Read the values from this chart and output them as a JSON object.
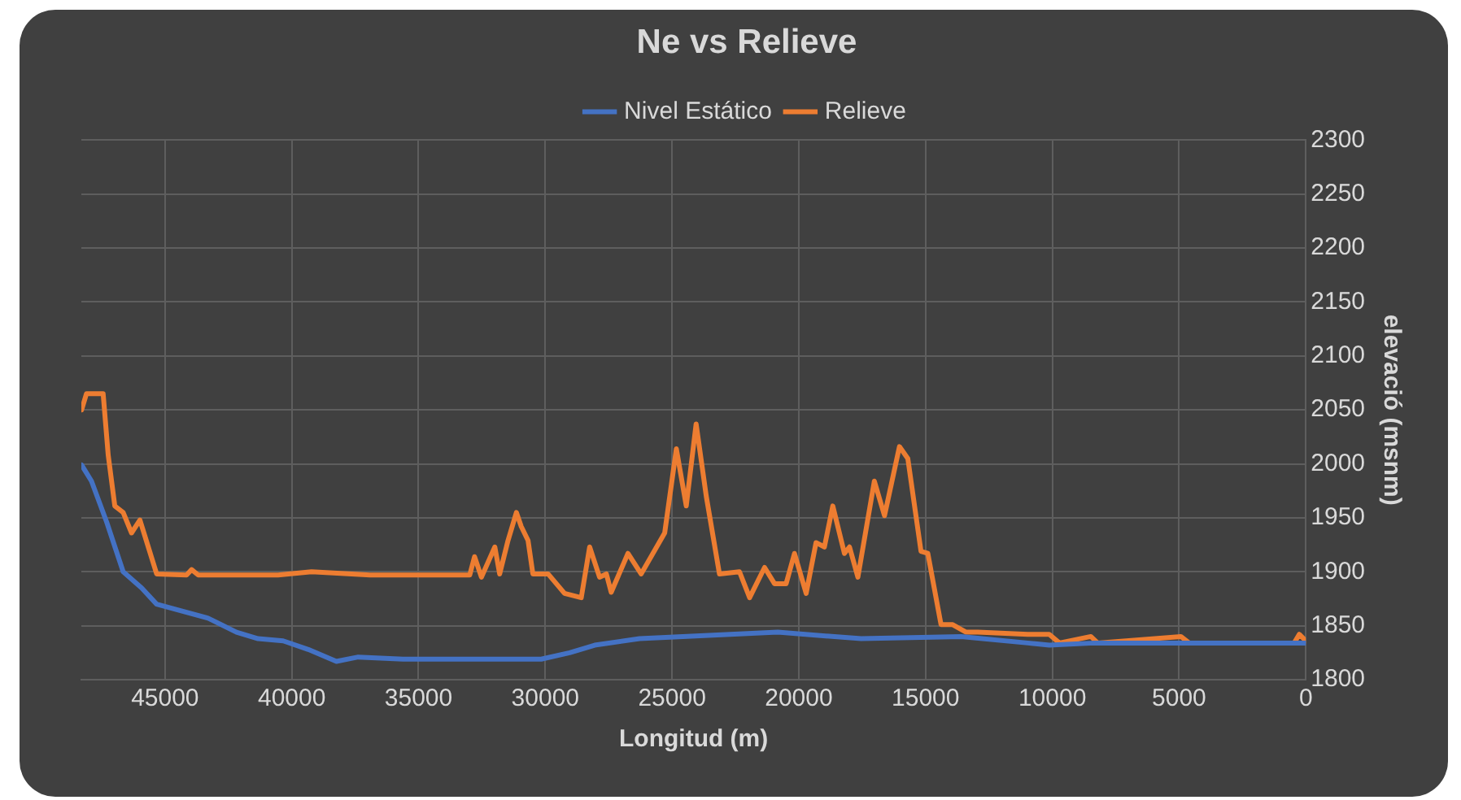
{
  "chart_data": {
    "type": "line",
    "title": "Ne vs Relieve",
    "xlabel": "Longitud (m)",
    "ylabel": "elevació (msnm)",
    "xlim": [
      48300,
      0
    ],
    "xticks": [
      45000,
      40000,
      35000,
      30000,
      25000,
      20000,
      15000,
      10000,
      5000,
      0
    ],
    "ylim": [
      1800,
      2300
    ],
    "yticks": [
      1800,
      1850,
      1900,
      1950,
      2000,
      2050,
      2100,
      2150,
      2200,
      2250,
      2300
    ],
    "grid": true,
    "legend": "top",
    "marker": "none",
    "line_style": "solid",
    "series": [
      {
        "name": "Nivel Estático",
        "color": "#4472c4",
        "x": [
          48290,
          47900,
          47300,
          46650,
          45920,
          45330,
          43300,
          42180,
          41330,
          40340,
          39350,
          38240,
          37380,
          35610,
          30160,
          29040,
          28050,
          26280,
          20830,
          17540,
          13600,
          10970,
          10120,
          8340,
          0
        ],
        "values": [
          1999,
          1984,
          1946,
          1900,
          1885,
          1870,
          1857,
          1844,
          1838,
          1836,
          1828,
          1817,
          1821,
          1819,
          1819,
          1825,
          1832,
          1838,
          1844,
          1838,
          1840,
          1834,
          1832,
          1834,
          1834
        ]
      },
      {
        "name": "Relieve",
        "color": "#ed7d31",
        "x": [
          48290,
          48100,
          47440,
          47240,
          46980,
          46650,
          46320,
          45990,
          45660,
          45330,
          44150,
          43950,
          43690,
          40540,
          39220,
          36920,
          32980,
          32790,
          32520,
          31990,
          31800,
          31470,
          31140,
          30950,
          30680,
          30490,
          29890,
          29240,
          28580,
          28250,
          27860,
          27590,
          27400,
          26740,
          26220,
          25290,
          24830,
          24440,
          24050,
          23650,
          23130,
          22340,
          21940,
          21350,
          20960,
          20500,
          20170,
          19710,
          19320,
          18990,
          18660,
          18200,
          18000,
          17670,
          17020,
          16620,
          16030,
          15700,
          15180,
          14910,
          14390,
          13930,
          13400,
          12940,
          10970,
          10120,
          9720,
          8480,
          8210,
          4930,
          4600,
          460,
          260,
          0
        ],
        "values": [
          2050,
          2065,
          2065,
          2008,
          1961,
          1955,
          1936,
          1948,
          1923,
          1898,
          1897,
          1902,
          1897,
          1897,
          1900,
          1897,
          1897,
          1914,
          1895,
          1923,
          1898,
          1929,
          1955,
          1942,
          1929,
          1898,
          1898,
          1880,
          1876,
          1923,
          1895,
          1898,
          1881,
          1917,
          1898,
          1936,
          2014,
          1961,
          2037,
          1970,
          1898,
          1900,
          1876,
          1904,
          1889,
          1889,
          1917,
          1880,
          1927,
          1923,
          1961,
          1917,
          1923,
          1895,
          1984,
          1952,
          2016,
          2005,
          1919,
          1917,
          1851,
          1851,
          1844,
          1844,
          1842,
          1842,
          1834,
          1840,
          1834,
          1840,
          1834,
          1834,
          1842,
          1836
        ]
      }
    ]
  }
}
